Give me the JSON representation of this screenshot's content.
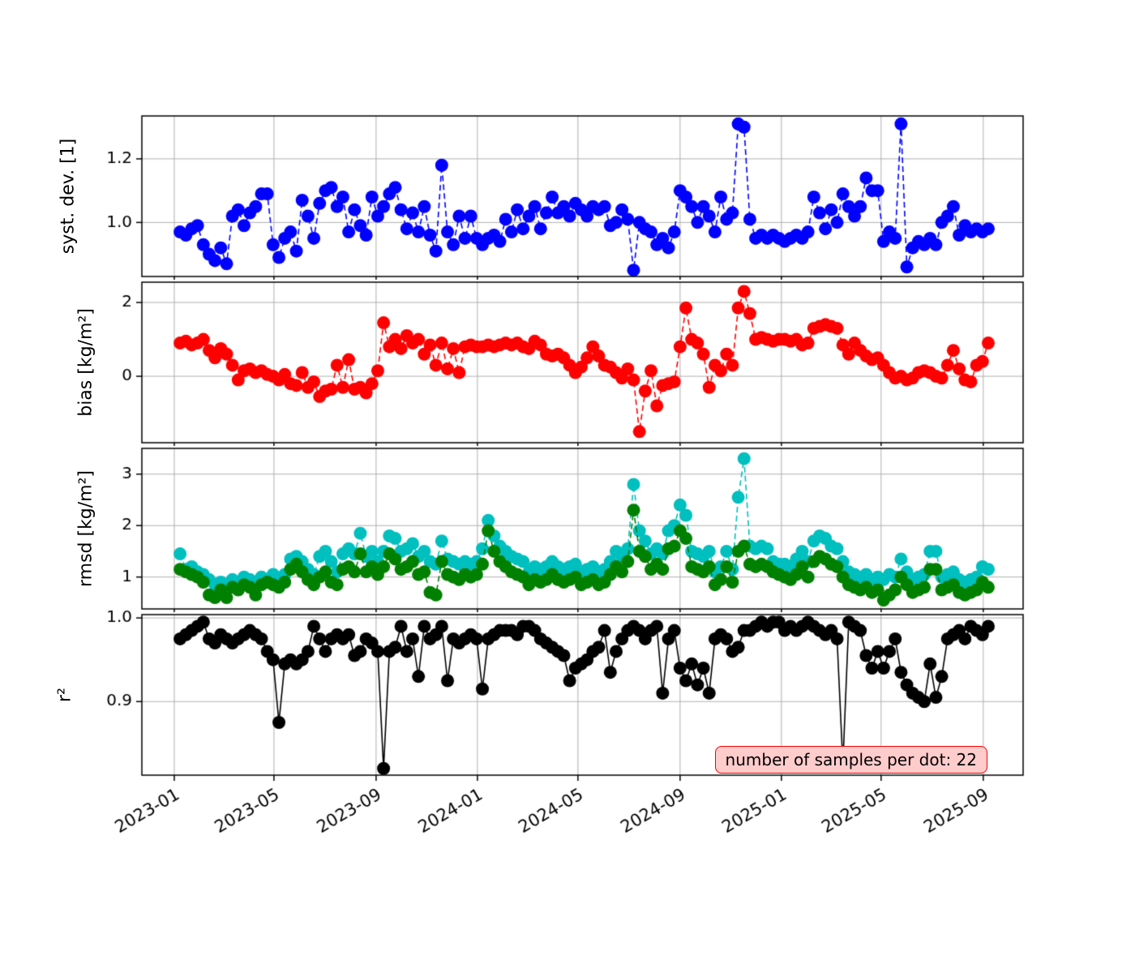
{
  "figure": {
    "background": "#ffffff",
    "grid_color": "#b0b0b0",
    "annotation": {
      "text": "number of samples per dot: 22",
      "bg": "#ffcccc",
      "border": "#ff0000"
    }
  },
  "chart_data": {
    "type": "line",
    "x_start_date": "2023-01-08",
    "x_interval_days": 7,
    "n_points": 140,
    "x_ticks": [
      "2023-01",
      "2023-05",
      "2023-09",
      "2024-01",
      "2024-05",
      "2024-09",
      "2025-01",
      "2025-05",
      "2025-09"
    ],
    "xlim_days": [
      -39,
      1022
    ],
    "panels": [
      {
        "ylabel": "syst. dev. [1]",
        "yticks": [
          "1.0",
          "1.2"
        ],
        "ytick_values": [
          1.0,
          1.2
        ],
        "ylim": [
          0.83,
          1.335
        ],
        "series": [
          {
            "name": "syst-dev",
            "color": "#0000ff",
            "line": "dashed",
            "values": [
              0.97,
              0.96,
              0.98,
              0.99,
              0.93,
              0.9,
              0.88,
              0.92,
              0.87,
              1.02,
              1.04,
              0.99,
              1.03,
              1.05,
              1.09,
              1.09,
              0.93,
              0.89,
              0.95,
              0.97,
              0.91,
              1.07,
              1.02,
              0.95,
              1.06,
              1.1,
              1.11,
              1.05,
              1.08,
              0.97,
              1.04,
              0.99,
              0.96,
              1.08,
              1.02,
              1.05,
              1.09,
              1.11,
              1.04,
              0.98,
              1.03,
              0.97,
              1.05,
              0.96,
              0.91,
              1.18,
              0.97,
              0.93,
              1.02,
              0.95,
              1.02,
              0.95,
              0.93,
              0.95,
              0.96,
              0.94,
              1.01,
              0.97,
              1.04,
              0.98,
              1.02,
              1.05,
              0.98,
              1.03,
              1.08,
              1.03,
              1.05,
              1.02,
              1.06,
              1.04,
              1.02,
              1.05,
              1.04,
              1.05,
              0.99,
              1.0,
              1.04,
              1.01,
              0.85,
              1.0,
              0.98,
              0.97,
              0.93,
              0.95,
              0.92,
              0.97,
              1.1,
              1.08,
              1.05,
              1.0,
              1.05,
              1.02,
              0.97,
              1.08,
              1.01,
              1.03,
              1.31,
              1.3,
              1.01,
              0.95,
              0.96,
              0.95,
              0.96,
              0.95,
              0.94,
              0.95,
              0.96,
              0.95,
              0.97,
              1.08,
              1.03,
              0.98,
              1.04,
              1.0,
              1.09,
              1.05,
              1.02,
              1.05,
              1.14,
              1.1,
              1.1,
              0.94,
              0.97,
              0.95,
              1.31,
              0.86,
              0.92,
              0.94,
              0.93,
              0.95,
              0.93,
              1.0,
              1.02,
              1.05,
              0.96,
              0.99,
              0.97,
              0.98,
              0.97,
              0.98
            ]
          }
        ]
      },
      {
        "ylabel": "bias [kg/m²]",
        "yticks": [
          "0",
          "2"
        ],
        "ytick_values": [
          0,
          2
        ],
        "ylim": [
          -1.8,
          2.55
        ],
        "series": [
          {
            "name": "bias",
            "color": "#ff0000",
            "line": "dashed",
            "values": [
              0.9,
              0.95,
              0.85,
              0.9,
              1.0,
              0.7,
              0.5,
              0.75,
              0.6,
              0.3,
              -0.1,
              0.15,
              0.2,
              0.1,
              0.15,
              0.05,
              0.0,
              -0.1,
              0.05,
              -0.2,
              -0.25,
              0.1,
              -0.3,
              -0.15,
              -0.55,
              -0.4,
              -0.35,
              0.3,
              -0.3,
              0.45,
              -0.35,
              -0.3,
              -0.45,
              -0.2,
              0.15,
              1.45,
              0.8,
              1.0,
              0.75,
              1.1,
              0.9,
              1.0,
              0.6,
              0.85,
              0.3,
              0.9,
              0.2,
              0.75,
              0.1,
              0.8,
              0.85,
              0.8,
              0.8,
              0.85,
              0.8,
              0.85,
              0.9,
              0.85,
              0.9,
              0.8,
              0.75,
              0.95,
              0.85,
              0.6,
              0.55,
              0.6,
              0.5,
              0.3,
              0.1,
              0.25,
              0.5,
              0.8,
              0.55,
              0.3,
              0.25,
              0.1,
              -0.05,
              0.2,
              -0.1,
              -1.5,
              -0.4,
              0.15,
              -0.8,
              -0.25,
              -0.2,
              -0.15,
              0.8,
              1.85,
              1.0,
              0.9,
              0.6,
              -0.3,
              0.3,
              0.15,
              0.6,
              0.3,
              1.85,
              2.3,
              1.7,
              1.0,
              1.05,
              1.0,
              0.95,
              1.0,
              1.0,
              0.95,
              1.0,
              0.85,
              0.9,
              1.3,
              1.35,
              1.4,
              1.35,
              1.3,
              0.85,
              0.6,
              0.9,
              0.7,
              0.55,
              0.45,
              0.5,
              0.3,
              0.1,
              -0.05,
              0.0,
              -0.1,
              -0.05,
              0.1,
              0.15,
              0.1,
              0.0,
              -0.05,
              0.3,
              0.7,
              0.2,
              -0.1,
              -0.15,
              0.3,
              0.4,
              0.9
            ]
          }
        ]
      },
      {
        "ylabel": "rmsd [kg/m²]",
        "yticks": [
          "1",
          "2",
          "3"
        ],
        "ytick_values": [
          1,
          2,
          3
        ],
        "ylim": [
          0.38,
          3.5
        ],
        "series": [
          {
            "name": "rmsd-cyan",
            "color": "#00bfbf",
            "line": "dashed",
            "values": [
              1.45,
              1.15,
              1.2,
              1.1,
              1.05,
              0.95,
              0.85,
              0.9,
              0.85,
              0.95,
              0.9,
              1.0,
              0.95,
              0.9,
              1.0,
              0.95,
              1.05,
              0.95,
              1.05,
              1.35,
              1.4,
              1.3,
              1.15,
              1.05,
              1.4,
              1.5,
              1.3,
              1.1,
              1.45,
              1.55,
              1.45,
              1.85,
              1.4,
              1.5,
              1.3,
              1.5,
              1.8,
              1.75,
              1.5,
              1.55,
              1.65,
              1.4,
              1.5,
              1.3,
              1.25,
              1.7,
              1.35,
              1.3,
              1.25,
              1.3,
              1.25,
              1.3,
              1.55,
              2.1,
              1.8,
              1.6,
              1.5,
              1.4,
              1.35,
              1.3,
              1.1,
              1.2,
              1.15,
              1.2,
              1.3,
              1.2,
              1.15,
              1.2,
              1.25,
              1.1,
              1.15,
              1.2,
              1.1,
              1.15,
              1.3,
              1.5,
              1.4,
              1.55,
              2.8,
              1.9,
              1.7,
              1.45,
              1.55,
              1.45,
              1.9,
              2.0,
              2.4,
              2.2,
              1.5,
              1.45,
              1.4,
              1.5,
              1.1,
              1.2,
              1.5,
              1.15,
              2.55,
              3.3,
              1.6,
              1.55,
              1.6,
              1.55,
              1.3,
              1.25,
              1.25,
              1.2,
              1.35,
              1.5,
              1.3,
              1.7,
              1.8,
              1.75,
              1.6,
              1.55,
              1.3,
              1.1,
              1.05,
              1.0,
              1.05,
              0.95,
              1.0,
              0.95,
              1.05,
              1.0,
              1.35,
              1.1,
              0.95,
              1.0,
              1.05,
              1.5,
              1.5,
              1.0,
              1.05,
              1.1,
              0.95,
              0.9,
              0.95,
              1.0,
              1.2,
              1.15
            ]
          },
          {
            "name": "rmsd-green",
            "color": "#008000",
            "line": "dashed",
            "values": [
              1.15,
              1.1,
              1.05,
              1.0,
              0.9,
              0.65,
              0.6,
              0.75,
              0.6,
              0.8,
              0.75,
              0.85,
              0.8,
              0.65,
              0.85,
              0.9,
              0.85,
              0.8,
              0.9,
              1.15,
              1.25,
              1.1,
              0.95,
              0.85,
              1.0,
              1.1,
              0.9,
              0.85,
              1.15,
              1.2,
              1.1,
              1.45,
              1.1,
              1.2,
              1.05,
              1.2,
              1.45,
              1.35,
              1.15,
              1.2,
              1.3,
              1.05,
              1.1,
              0.7,
              0.65,
              1.3,
              1.05,
              1.0,
              0.95,
              1.05,
              1.0,
              1.05,
              1.25,
              1.9,
              1.5,
              1.3,
              1.2,
              1.1,
              1.05,
              1.0,
              0.85,
              0.95,
              0.9,
              0.95,
              1.05,
              0.95,
              0.9,
              0.95,
              1.0,
              0.85,
              0.9,
              0.95,
              0.85,
              0.9,
              1.05,
              1.2,
              1.1,
              1.3,
              2.3,
              1.5,
              1.4,
              1.15,
              1.25,
              1.15,
              1.55,
              1.6,
              1.9,
              1.75,
              1.2,
              1.15,
              1.1,
              1.2,
              0.85,
              0.95,
              1.2,
              0.9,
              1.5,
              1.6,
              1.25,
              1.2,
              1.25,
              1.2,
              1.1,
              1.05,
              1.0,
              0.95,
              1.05,
              1.2,
              1.0,
              1.3,
              1.4,
              1.35,
              1.25,
              1.2,
              1.0,
              0.85,
              0.8,
              0.75,
              0.8,
              0.7,
              0.75,
              0.55,
              0.65,
              0.75,
              1.0,
              0.85,
              0.7,
              0.75,
              0.8,
              1.15,
              1.15,
              0.75,
              0.8,
              0.85,
              0.7,
              0.65,
              0.7,
              0.75,
              0.9,
              0.8
            ]
          }
        ]
      },
      {
        "ylabel": "r²",
        "yticks": [
          "0.9",
          "1.0"
        ],
        "ytick_values": [
          0.9,
          1.0
        ],
        "ylim": [
          0.812,
          1.004
        ],
        "series": [
          {
            "name": "r2",
            "color": "#000000",
            "line": "solid",
            "values": [
              0.975,
              0.98,
              0.985,
              0.99,
              0.995,
              0.975,
              0.97,
              0.98,
              0.975,
              0.97,
              0.975,
              0.98,
              0.985,
              0.98,
              0.975,
              0.96,
              0.95,
              0.875,
              0.945,
              0.95,
              0.945,
              0.95,
              0.96,
              0.99,
              0.975,
              0.96,
              0.975,
              0.98,
              0.975,
              0.98,
              0.955,
              0.96,
              0.975,
              0.97,
              0.96,
              0.82,
              0.96,
              0.965,
              0.99,
              0.96,
              0.975,
              0.93,
              0.99,
              0.975,
              0.98,
              0.99,
              0.925,
              0.975,
              0.97,
              0.975,
              0.98,
              0.975,
              0.915,
              0.975,
              0.98,
              0.985,
              0.985,
              0.985,
              0.98,
              0.99,
              0.99,
              0.985,
              0.975,
              0.97,
              0.965,
              0.96,
              0.955,
              0.925,
              0.94,
              0.945,
              0.95,
              0.96,
              0.965,
              0.985,
              0.935,
              0.96,
              0.975,
              0.985,
              0.99,
              0.985,
              0.975,
              0.985,
              0.99,
              0.91,
              0.975,
              0.985,
              0.94,
              0.925,
              0.945,
              0.92,
              0.94,
              0.91,
              0.975,
              0.98,
              0.975,
              0.96,
              0.965,
              0.985,
              0.985,
              0.99,
              0.995,
              0.99,
              0.995,
              0.995,
              0.985,
              0.99,
              0.985,
              0.99,
              0.995,
              0.99,
              0.985,
              0.98,
              0.985,
              0.975,
              0.825,
              0.995,
              0.99,
              0.985,
              0.955,
              0.94,
              0.96,
              0.94,
              0.96,
              0.975,
              0.935,
              0.92,
              0.91,
              0.905,
              0.9,
              0.945,
              0.905,
              0.93,
              0.975,
              0.98,
              0.985,
              0.975,
              0.99,
              0.985,
              0.98,
              0.99
            ]
          }
        ]
      }
    ]
  }
}
